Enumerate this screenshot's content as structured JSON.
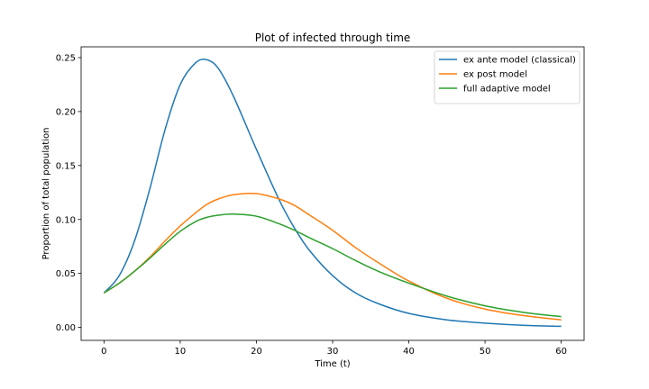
{
  "chart_data": {
    "type": "line",
    "title": "Plot of infected through time",
    "xlabel": "Time (t)",
    "ylabel": "Proportion of total population",
    "xlim": [
      -3,
      63
    ],
    "ylim": [
      -0.012,
      0.26
    ],
    "xticks": [
      0,
      10,
      20,
      30,
      40,
      50,
      60
    ],
    "yticks": [
      0.0,
      0.05,
      0.1,
      0.15,
      0.2,
      0.25
    ],
    "ytick_labels": [
      "0.00",
      "0.05",
      "0.10",
      "0.15",
      "0.20",
      "0.25"
    ],
    "grid": false,
    "legend": "top-right",
    "x": [
      0,
      2,
      4,
      6,
      8,
      10,
      12,
      13.5,
      15,
      17,
      20,
      23,
      25,
      27,
      30,
      33,
      36,
      40,
      45,
      50,
      55,
      60
    ],
    "series": [
      {
        "name": "ex ante model (classical)",
        "color": "#1f77b4",
        "values": [
          0.032,
          0.048,
          0.08,
          0.128,
          0.183,
          0.225,
          0.245,
          0.248,
          0.24,
          0.214,
          0.165,
          0.118,
          0.092,
          0.071,
          0.048,
          0.032,
          0.022,
          0.013,
          0.007,
          0.004,
          0.002,
          0.001
        ]
      },
      {
        "name": "ex post model",
        "color": "#ff7f0e",
        "values": [
          0.032,
          0.041,
          0.052,
          0.065,
          0.08,
          0.094,
          0.106,
          0.114,
          0.119,
          0.123,
          0.124,
          0.119,
          0.113,
          0.104,
          0.09,
          0.074,
          0.06,
          0.043,
          0.027,
          0.017,
          0.011,
          0.007
        ]
      },
      {
        "name": "full adaptive model",
        "color": "#2ca02c",
        "values": [
          0.032,
          0.041,
          0.052,
          0.064,
          0.077,
          0.089,
          0.098,
          0.102,
          0.104,
          0.105,
          0.103,
          0.096,
          0.09,
          0.083,
          0.073,
          0.062,
          0.052,
          0.041,
          0.029,
          0.02,
          0.014,
          0.01
        ]
      }
    ]
  }
}
